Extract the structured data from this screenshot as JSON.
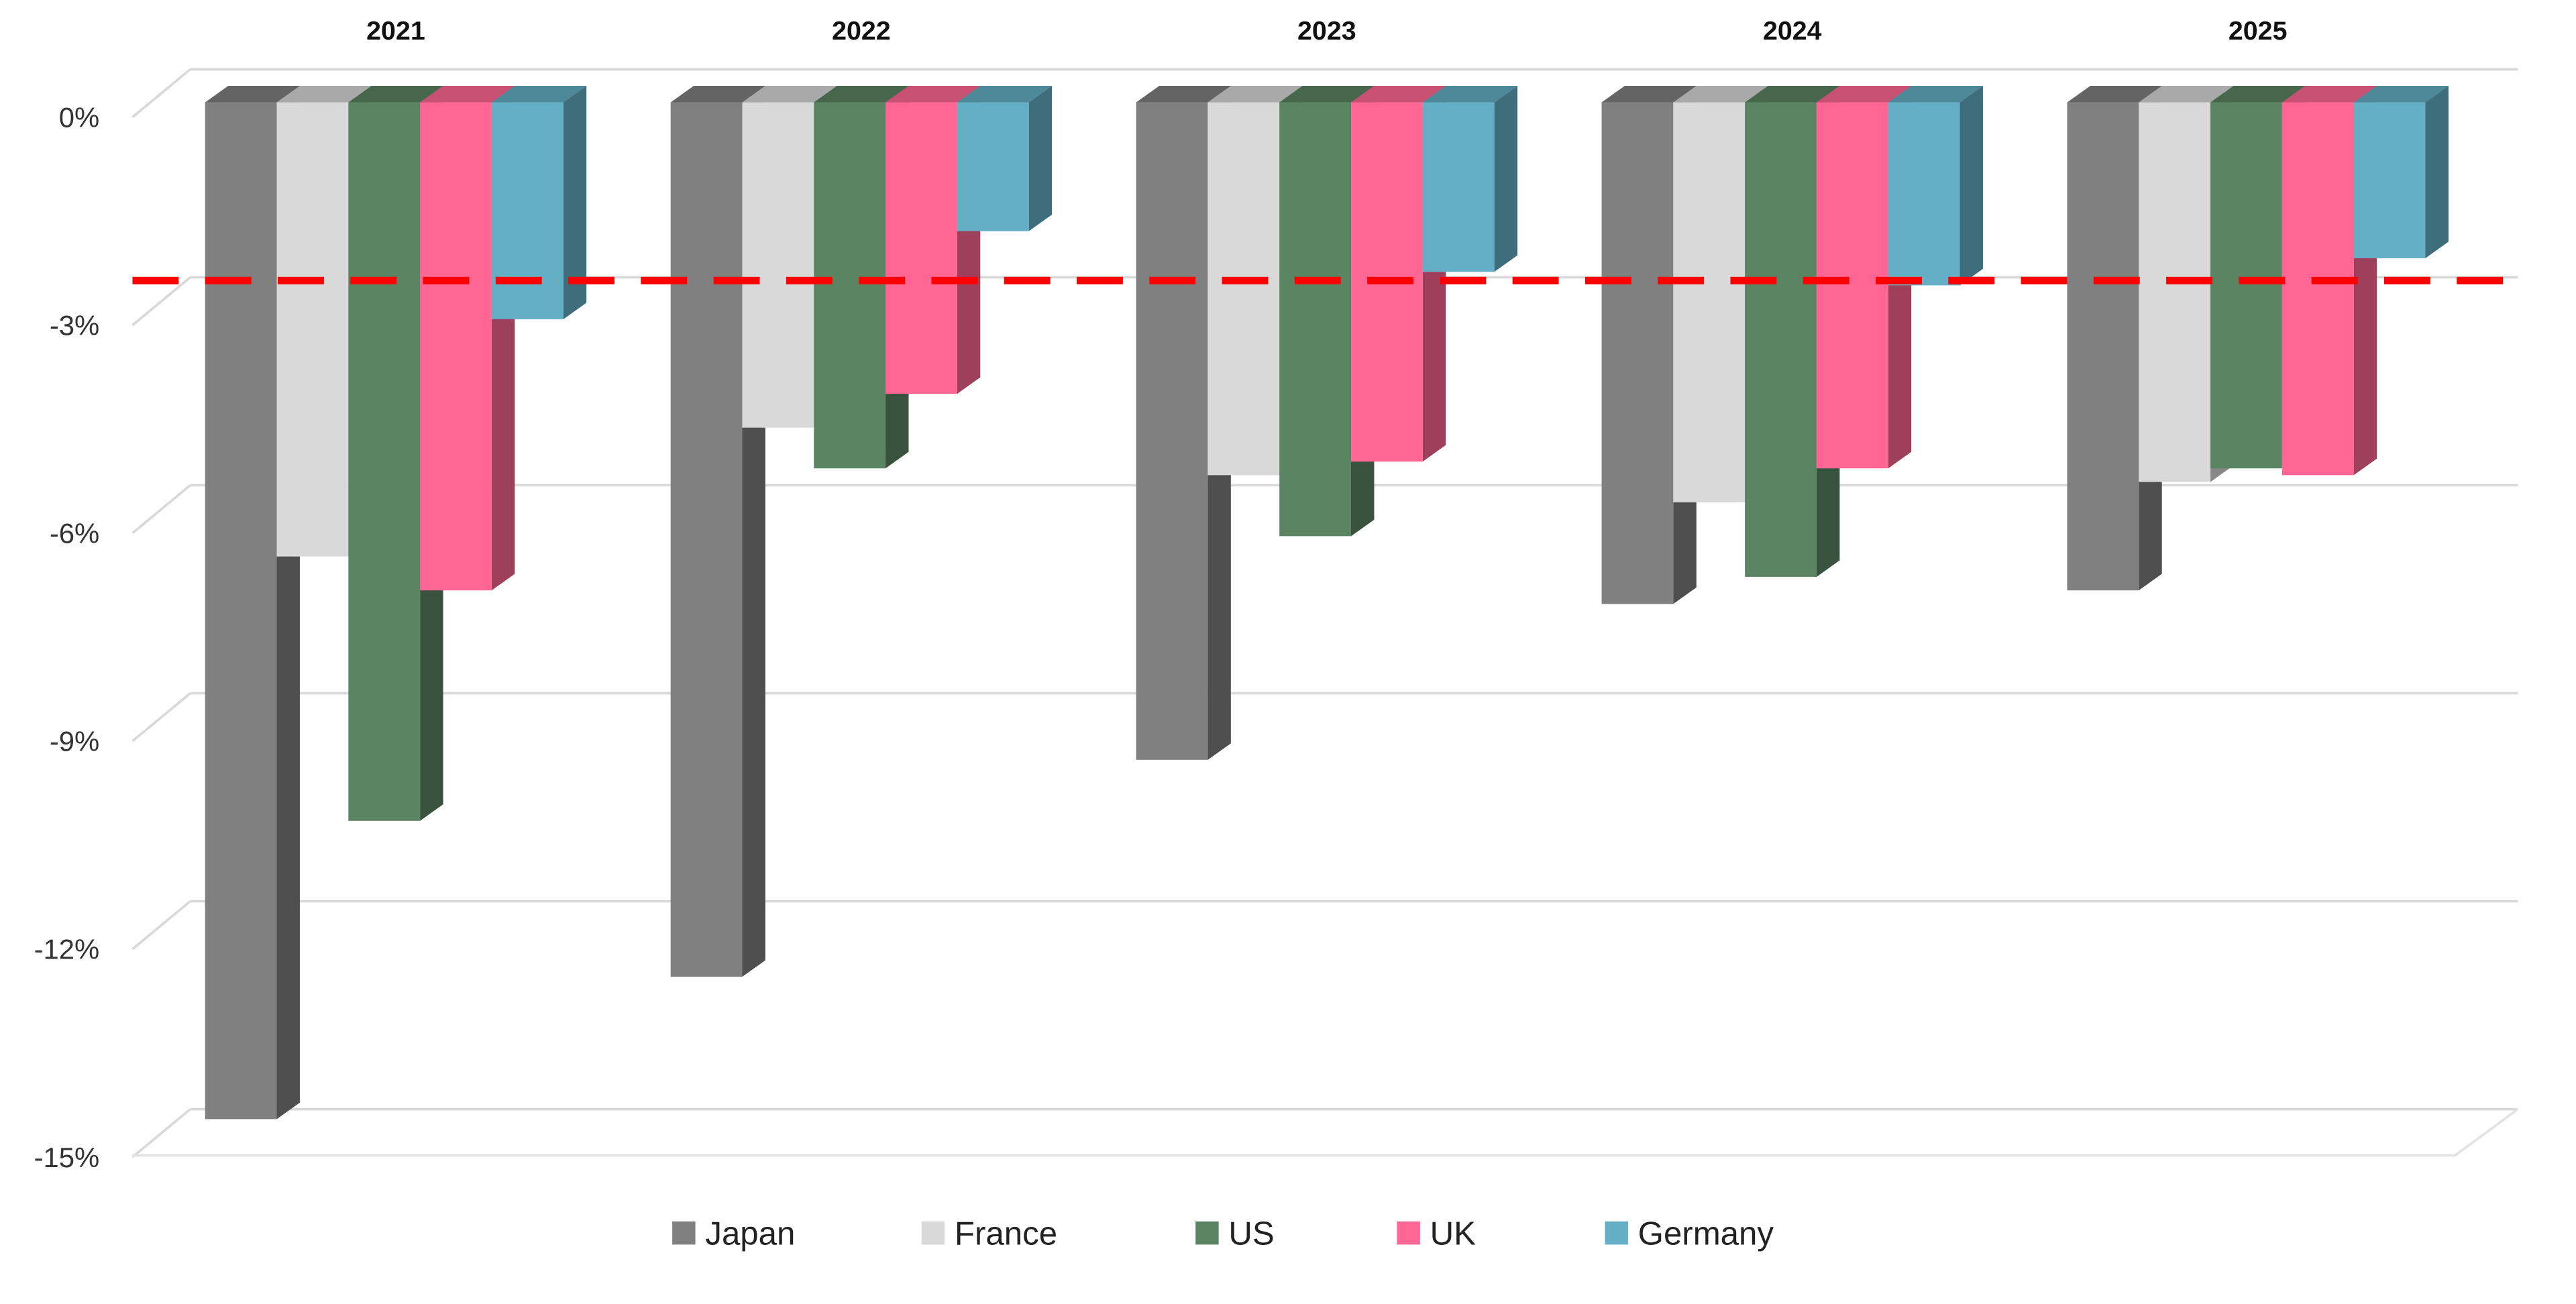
{
  "chart_data": {
    "type": "bar",
    "title": "",
    "xlabel": "",
    "ylabel": "",
    "categories": [
      "2021",
      "2022",
      "2023",
      "2024",
      "2025"
    ],
    "series": [
      {
        "name": "Japan",
        "color": "#808080",
        "values": [
          -15.0,
          -12.9,
          -9.7,
          -7.4,
          -7.2
        ]
      },
      {
        "name": "France",
        "color": "#d9d9d9",
        "values": [
          -6.7,
          -4.8,
          -5.5,
          -5.9,
          -5.6
        ]
      },
      {
        "name": "US",
        "color": "#5b8463",
        "values": [
          -10.6,
          -5.4,
          -6.4,
          -7.0,
          -5.4
        ]
      },
      {
        "name": "UK",
        "color": "#ff6694",
        "values": [
          -7.2,
          -4.3,
          -5.3,
          -5.4,
          -5.5
        ]
      },
      {
        "name": "Germany",
        "color": "#64afc6",
        "values": [
          -3.2,
          -1.9,
          -2.5,
          -2.7,
          -2.3
        ]
      }
    ],
    "ylim": [
      -15,
      0
    ],
    "yticks": [
      0,
      -3,
      -6,
      -9,
      -12,
      -15
    ],
    "ytick_labels": [
      "0%",
      "-3%",
      "-6%",
      "-9%",
      "-12%",
      "-15%"
    ],
    "reference_line": {
      "value": -2.6,
      "color": "#ff0000",
      "style": "dashed"
    },
    "grid": true,
    "legend_position": "bottom",
    "category_axis_position": "top"
  }
}
